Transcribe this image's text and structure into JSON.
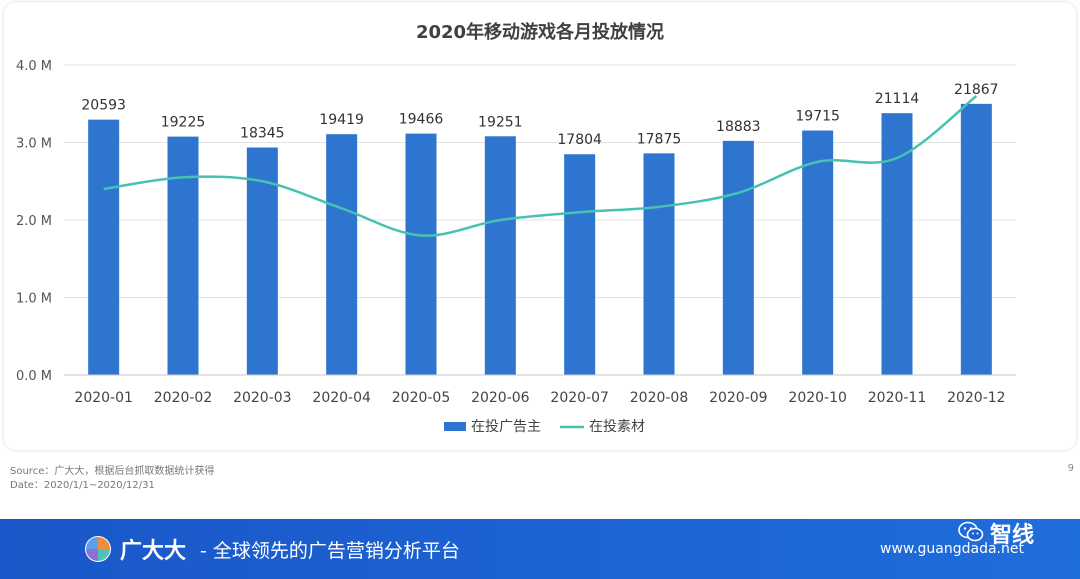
{
  "chart_data": {
    "type": "bar",
    "title": "2020年移动游戏各月投放情况",
    "categories": [
      "2020-01",
      "2020-02",
      "2020-03",
      "2020-04",
      "2020-05",
      "2020-06",
      "2020-07",
      "2020-08",
      "2020-09",
      "2020-10",
      "2020-11",
      "2020-12"
    ],
    "series": [
      {
        "name": "在投广告主",
        "type": "bar",
        "axis": "secondary",
        "color": "#2e75cf",
        "values": [
          20593,
          19225,
          18345,
          19419,
          19466,
          19251,
          17804,
          17875,
          18883,
          19715,
          21114,
          21867
        ],
        "data_labels": [
          "20593",
          "19225",
          "18345",
          "19419",
          "19466",
          "19251",
          "17804",
          "17875",
          "18883",
          "19715",
          "21114",
          "21867"
        ]
      },
      {
        "name": "在投素材",
        "type": "line",
        "smooth": true,
        "axis": "primary",
        "color": "#47c1b2",
        "values": [
          2.4,
          2.55,
          2.5,
          2.15,
          1.8,
          2.0,
          2.1,
          2.17,
          2.35,
          2.75,
          2.8,
          3.6
        ]
      }
    ],
    "y_axis": {
      "ticks": [
        "0.0 M",
        "1.0 M",
        "2.0 M",
        "3.0 M",
        "4.0 M"
      ],
      "ylim": [
        0,
        4.0
      ],
      "unit": "M"
    },
    "secondary_axis_range": [
      0,
      25000
    ],
    "grid": true,
    "legend_position": "bottom-center"
  },
  "source": {
    "line1": "Source：广大大，根据后台抓取数据统计获得",
    "line2": "Date：2020/1/1~2020/12/31"
  },
  "page_number": "9",
  "footer": {
    "brand": "广大大",
    "slogan": "- 全球领先的广告营销分析平台",
    "url": "www.guangdada.net",
    "watermark": "智线",
    "logo_icon": "pie-logo-icon",
    "wechat_icon": "wechat-icon"
  }
}
